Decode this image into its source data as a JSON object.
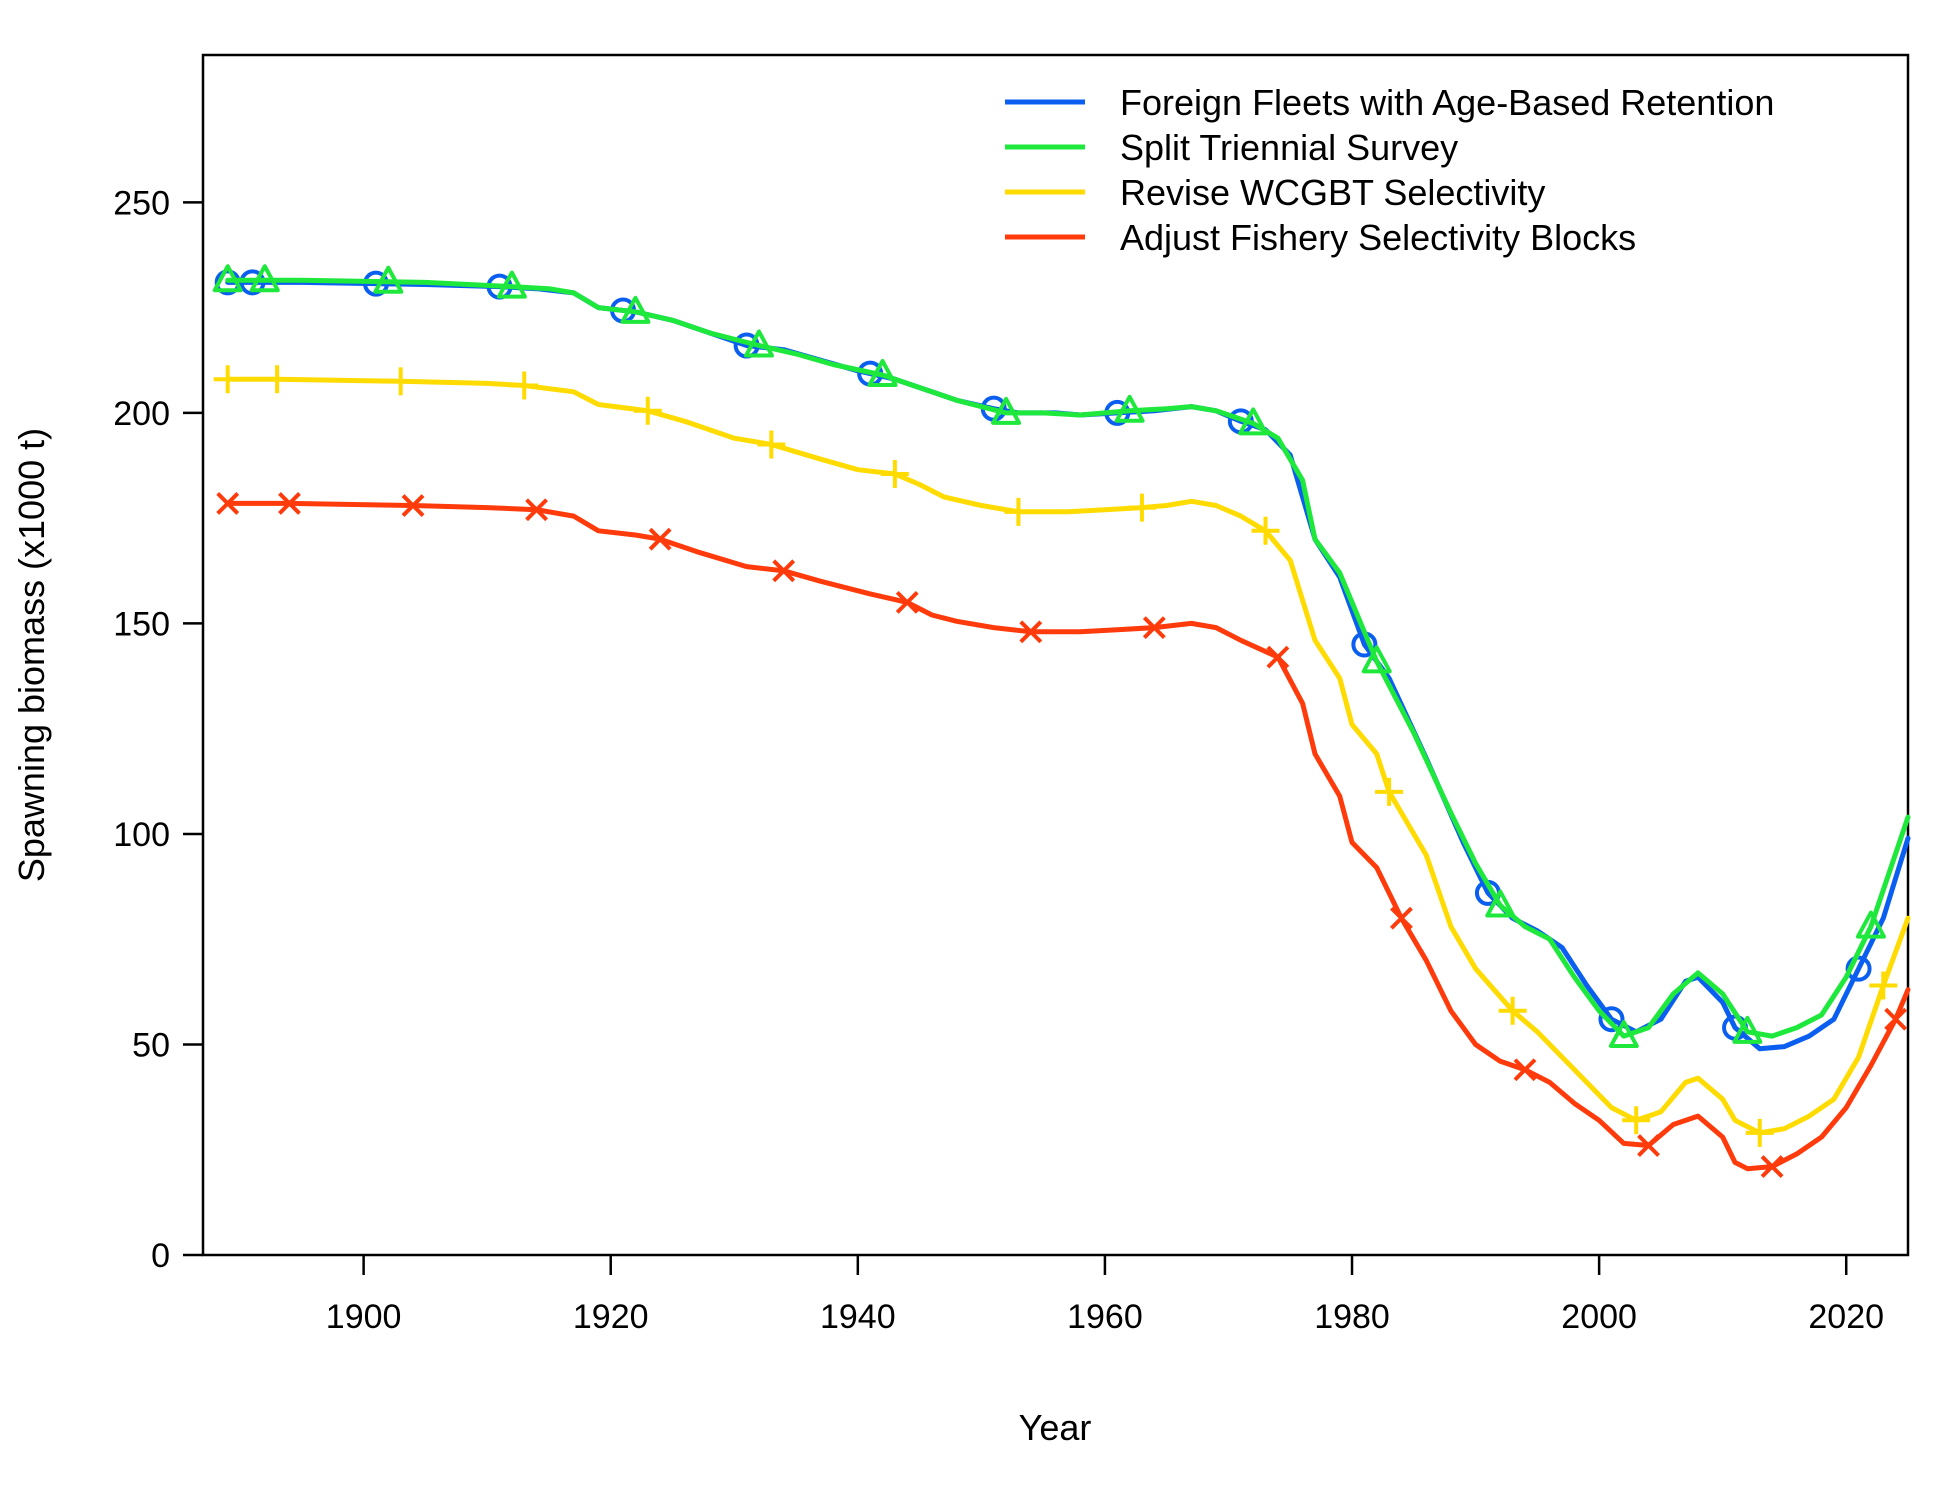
{
  "chart_data": {
    "type": "line",
    "title": "",
    "xlabel": "Year",
    "ylabel": "Spawning biomass (x1000 t)",
    "xlim": [
      1887,
      2025
    ],
    "ylim": [
      0,
      285
    ],
    "xticks": [
      1900,
      1920,
      1940,
      1960,
      1980,
      2000,
      2020
    ],
    "yticks": [
      0,
      50,
      100,
      150,
      200,
      250
    ],
    "grid": false,
    "legend_position": "top-right",
    "series": [
      {
        "name": "Foreign Fleets with Age-Based Retention",
        "color": "#0b5ff0",
        "marker": "circle",
        "marker_years": [
          1889,
          1891,
          1901,
          1911,
          1921,
          1931,
          1941,
          1951,
          1961,
          1971,
          1981,
          1991,
          2001,
          2011,
          2021
        ],
        "points": [
          [
            1889,
            231
          ],
          [
            1895,
            231
          ],
          [
            1905,
            230.5
          ],
          [
            1911,
            230
          ],
          [
            1914,
            229.5
          ],
          [
            1917,
            228.5
          ],
          [
            1919,
            225
          ],
          [
            1922,
            224
          ],
          [
            1925,
            222
          ],
          [
            1928,
            219
          ],
          [
            1931,
            216
          ],
          [
            1934,
            215
          ],
          [
            1937,
            212.5
          ],
          [
            1940,
            210
          ],
          [
            1943,
            208
          ],
          [
            1946,
            205
          ],
          [
            1948,
            203
          ],
          [
            1951,
            201
          ],
          [
            1953,
            200
          ],
          [
            1956,
            200
          ],
          [
            1958,
            199.5
          ],
          [
            1961,
            200
          ],
          [
            1964,
            200.5
          ],
          [
            1967,
            201.5
          ],
          [
            1969,
            200.5
          ],
          [
            1971,
            198
          ],
          [
            1973,
            196
          ],
          [
            1975,
            190
          ],
          [
            1977,
            170
          ],
          [
            1979,
            161
          ],
          [
            1981,
            145
          ],
          [
            1983,
            137
          ],
          [
            1986,
            118
          ],
          [
            1989,
            98
          ],
          [
            1991,
            86
          ],
          [
            1993,
            80
          ],
          [
            1995,
            77
          ],
          [
            1997,
            73
          ],
          [
            1999,
            64
          ],
          [
            2001,
            56
          ],
          [
            2003,
            53
          ],
          [
            2005,
            56
          ],
          [
            2007,
            65
          ],
          [
            2008,
            66
          ],
          [
            2010,
            60
          ],
          [
            2011,
            54
          ],
          [
            2013,
            49
          ],
          [
            2015,
            49.5
          ],
          [
            2017,
            52
          ],
          [
            2019,
            56
          ],
          [
            2021,
            68
          ],
          [
            2023,
            80
          ],
          [
            2025,
            99
          ]
        ]
      },
      {
        "name": "Split Triennial Survey",
        "color": "#1ee83c",
        "marker": "triangle",
        "marker_years": [
          1889,
          1892,
          1902,
          1912,
          1922,
          1932,
          1942,
          1952,
          1962,
          1972,
          1982,
          1992,
          2002,
          2012,
          2022
        ],
        "points": [
          [
            1889,
            231.5
          ],
          [
            1895,
            231.5
          ],
          [
            1905,
            231
          ],
          [
            1912,
            230
          ],
          [
            1915,
            229.5
          ],
          [
            1917,
            228.5
          ],
          [
            1919,
            225
          ],
          [
            1922,
            224
          ],
          [
            1925,
            222
          ],
          [
            1928,
            219
          ],
          [
            1932,
            216
          ],
          [
            1935,
            214
          ],
          [
            1938,
            211.5
          ],
          [
            1942,
            209
          ],
          [
            1945,
            206
          ],
          [
            1948,
            203
          ],
          [
            1952,
            200
          ],
          [
            1955,
            200
          ],
          [
            1958,
            199.5
          ],
          [
            1962,
            200.5
          ],
          [
            1965,
            201
          ],
          [
            1967,
            201.5
          ],
          [
            1969,
            200.5
          ],
          [
            1972,
            197.5
          ],
          [
            1974,
            194
          ],
          [
            1976,
            184
          ],
          [
            1977,
            170
          ],
          [
            1979,
            162
          ],
          [
            1982,
            141
          ],
          [
            1985,
            124
          ],
          [
            1988,
            105
          ],
          [
            1990,
            93
          ],
          [
            1992,
            83
          ],
          [
            1994,
            78
          ],
          [
            1996,
            75
          ],
          [
            1998,
            66
          ],
          [
            2000,
            58
          ],
          [
            2002,
            52
          ],
          [
            2004,
            54
          ],
          [
            2006,
            62
          ],
          [
            2008,
            67
          ],
          [
            2010,
            62
          ],
          [
            2012,
            53
          ],
          [
            2014,
            52
          ],
          [
            2016,
            54
          ],
          [
            2018,
            57
          ],
          [
            2020,
            66
          ],
          [
            2022,
            78
          ],
          [
            2025,
            104
          ]
        ]
      },
      {
        "name": "Revise WCGBT Selectivity",
        "color": "#ffdb00",
        "marker": "plus",
        "marker_years": [
          1889,
          1893,
          1903,
          1913,
          1923,
          1933,
          1943,
          1953,
          1963,
          1973,
          1983,
          1993,
          2003,
          2013,
          2023
        ],
        "points": [
          [
            1889,
            208
          ],
          [
            1893,
            208
          ],
          [
            1903,
            207.5
          ],
          [
            1910,
            207
          ],
          [
            1913,
            206.5
          ],
          [
            1917,
            205
          ],
          [
            1919,
            202
          ],
          [
            1923,
            200.5
          ],
          [
            1926,
            198
          ],
          [
            1930,
            194
          ],
          [
            1933,
            192.5
          ],
          [
            1937,
            189
          ],
          [
            1940,
            186.5
          ],
          [
            1943,
            185.5
          ],
          [
            1945,
            183
          ],
          [
            1947,
            180
          ],
          [
            1950,
            178
          ],
          [
            1953,
            176.5
          ],
          [
            1957,
            176.5
          ],
          [
            1960,
            177
          ],
          [
            1963,
            177.5
          ],
          [
            1965,
            178
          ],
          [
            1967,
            179
          ],
          [
            1969,
            178
          ],
          [
            1971,
            175.5
          ],
          [
            1973,
            172
          ],
          [
            1975,
            165
          ],
          [
            1977,
            146
          ],
          [
            1979,
            137
          ],
          [
            1980,
            126
          ],
          [
            1982,
            119
          ],
          [
            1983,
            110
          ],
          [
            1986,
            95
          ],
          [
            1988,
            78
          ],
          [
            1990,
            68
          ],
          [
            1993,
            58
          ],
          [
            1995,
            53
          ],
          [
            1997,
            47
          ],
          [
            1999,
            41
          ],
          [
            2001,
            35
          ],
          [
            2003,
            32
          ],
          [
            2005,
            34
          ],
          [
            2007,
            41
          ],
          [
            2008,
            42
          ],
          [
            2010,
            37
          ],
          [
            2011,
            32
          ],
          [
            2013,
            29
          ],
          [
            2015,
            30
          ],
          [
            2017,
            33
          ],
          [
            2019,
            37
          ],
          [
            2021,
            47
          ],
          [
            2023,
            64
          ],
          [
            2025,
            80
          ]
        ]
      },
      {
        "name": "Adjust Fishery Selectivity Blocks",
        "color": "#ff3b0c",
        "marker": "x",
        "marker_years": [
          1889,
          1894,
          1904,
          1914,
          1924,
          1934,
          1944,
          1954,
          1964,
          1974,
          1984,
          1994,
          2004,
          2014,
          2024
        ],
        "points": [
          [
            1889,
            178.5
          ],
          [
            1894,
            178.5
          ],
          [
            1904,
            178
          ],
          [
            1910,
            177.5
          ],
          [
            1914,
            177
          ],
          [
            1917,
            175.5
          ],
          [
            1919,
            172
          ],
          [
            1922,
            171
          ],
          [
            1924,
            170
          ],
          [
            1927,
            167
          ],
          [
            1931,
            163.5
          ],
          [
            1934,
            162.5
          ],
          [
            1937,
            160
          ],
          [
            1941,
            157
          ],
          [
            1944,
            155
          ],
          [
            1946,
            152
          ],
          [
            1948,
            150.5
          ],
          [
            1951,
            149
          ],
          [
            1954,
            148
          ],
          [
            1958,
            148
          ],
          [
            1961,
            148.5
          ],
          [
            1964,
            149
          ],
          [
            1967,
            150
          ],
          [
            1969,
            149
          ],
          [
            1971,
            146
          ],
          [
            1974,
            142
          ],
          [
            1976,
            131
          ],
          [
            1977,
            119
          ],
          [
            1979,
            109
          ],
          [
            1980,
            98
          ],
          [
            1982,
            92
          ],
          [
            1984,
            80
          ],
          [
            1986,
            70
          ],
          [
            1988,
            58
          ],
          [
            1990,
            50
          ],
          [
            1992,
            46
          ],
          [
            1994,
            44
          ],
          [
            1996,
            41
          ],
          [
            1998,
            36
          ],
          [
            2000,
            32
          ],
          [
            2002,
            26.5
          ],
          [
            2004,
            26
          ],
          [
            2006,
            31
          ],
          [
            2008,
            33
          ],
          [
            2010,
            28
          ],
          [
            2011,
            22
          ],
          [
            2012,
            20.5
          ],
          [
            2014,
            21
          ],
          [
            2016,
            24
          ],
          [
            2018,
            28
          ],
          [
            2020,
            35
          ],
          [
            2022,
            45
          ],
          [
            2024,
            56
          ],
          [
            2025,
            63
          ]
        ]
      }
    ]
  }
}
